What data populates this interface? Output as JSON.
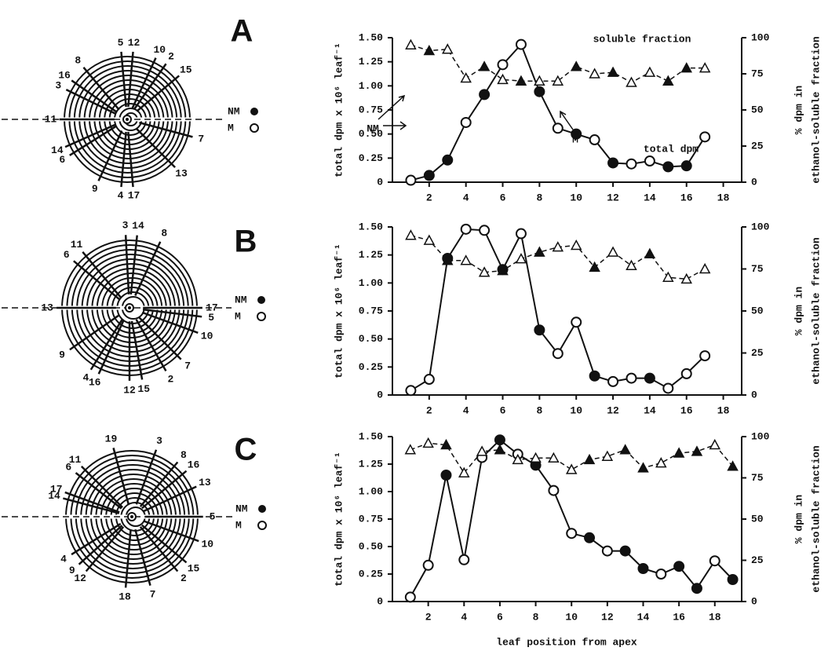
{
  "x_label": "leaf position from apex",
  "chart_data": [
    {
      "type": "line",
      "panel": "A",
      "y_label": "total dpm x 10⁶ leaf⁻¹",
      "y2_label": [
        "% dpm in",
        "ethanol-soluble fraction"
      ],
      "x": [
        1,
        2,
        3,
        4,
        5,
        6,
        7,
        8,
        9,
        10,
        11,
        12,
        13,
        14,
        15,
        16,
        17
      ],
      "xlim": [
        0,
        19
      ],
      "xticks": [
        2,
        4,
        6,
        8,
        10,
        12,
        14,
        16,
        18
      ],
      "ylim": [
        0,
        1.5
      ],
      "yticks": [
        0,
        0.25,
        {
          "value": 0.5,
          "label": "0.50"
        },
        0.75,
        {
          "value": 1,
          "label": "1.00"
        },
        1.25,
        {
          "value": 1.5,
          "label": "1.50"
        }
      ],
      "y2lim": [
        0,
        100
      ],
      "y2ticks": [
        0,
        25,
        50,
        75,
        100
      ],
      "series": [
        {
          "name": "total dpm",
          "color": "#111",
          "marker": "circle",
          "dash": false,
          "values": [
            0.02,
            0.07,
            0.23,
            0.62,
            0.91,
            1.22,
            1.43,
            0.94,
            0.56,
            0.5,
            0.44,
            0.2,
            0.19,
            0.22,
            0.16,
            0.17,
            0.47
          ],
          "filled": [
            false,
            true,
            true,
            false,
            true,
            false,
            false,
            true,
            false,
            true,
            false,
            true,
            false,
            false,
            true,
            true,
            false
          ]
        },
        {
          "name": "soluble fraction",
          "color": "#111",
          "marker": "triangle",
          "dash": true,
          "axis": "y2",
          "values": [
            95,
            91,
            92,
            72,
            80,
            71,
            70,
            70,
            70,
            80,
            75,
            76,
            69,
            76,
            70,
            79,
            79
          ],
          "filled": [
            false,
            true,
            false,
            false,
            true,
            false,
            true,
            false,
            false,
            true,
            false,
            true,
            false,
            false,
            true,
            true,
            false
          ]
        }
      ],
      "annotations": [
        "soluble fraction",
        "total dpm",
        "NM",
        "M"
      ]
    },
    {
      "type": "line",
      "panel": "B",
      "y_label": "total dpm x 10⁶ leaf⁻¹",
      "y2_label": [
        "% dpm in",
        "ethanol-soluble fraction"
      ],
      "x": [
        1,
        2,
        3,
        4,
        5,
        6,
        7,
        8,
        9,
        10,
        11,
        12,
        13,
        14,
        15,
        16,
        17
      ],
      "xlim": [
        0,
        19
      ],
      "xticks": [
        2,
        4,
        6,
        8,
        10,
        12,
        14,
        16,
        18
      ],
      "ylim": [
        0,
        1.5
      ],
      "yticks": [
        0,
        0.25,
        {
          "value": 0.5,
          "label": "0.50"
        },
        0.75,
        {
          "value": 1,
          "label": "1.00"
        },
        1.25,
        {
          "value": 1.5,
          "label": "1.50"
        }
      ],
      "y2lim": [
        0,
        100
      ],
      "y2ticks": [
        0,
        25,
        50,
        75,
        100
      ],
      "series": [
        {
          "name": "total dpm",
          "color": "#111",
          "marker": "circle",
          "dash": false,
          "values": [
            0.04,
            0.14,
            1.22,
            1.48,
            1.47,
            1.12,
            1.44,
            0.58,
            0.37,
            0.65,
            0.17,
            0.12,
            0.15,
            0.15,
            0.06,
            0.19,
            0.35
          ],
          "filled": [
            false,
            false,
            true,
            false,
            false,
            true,
            false,
            true,
            false,
            false,
            true,
            false,
            false,
            true,
            false,
            false,
            false
          ]
        },
        {
          "name": "soluble fraction",
          "color": "#111",
          "marker": "triangle",
          "dash": true,
          "axis": "y2",
          "values": [
            95,
            92,
            80,
            80,
            73,
            74,
            81,
            85,
            88,
            89,
            76,
            85,
            77,
            84,
            70,
            69,
            75
          ],
          "filled": [
            false,
            false,
            true,
            false,
            false,
            true,
            false,
            true,
            false,
            false,
            true,
            false,
            false,
            true,
            false,
            false,
            false
          ]
        }
      ],
      "annotations": []
    },
    {
      "type": "line",
      "panel": "C",
      "y_label": "total dpm x 10⁶ leaf⁻¹",
      "y2_label": [
        "% dpm in",
        "ethanol-soluble fraction"
      ],
      "x": [
        1,
        2,
        3,
        4,
        5,
        6,
        7,
        8,
        9,
        10,
        11,
        12,
        13,
        14,
        15,
        16,
        17,
        18,
        19
      ],
      "xlim": [
        0,
        19.5
      ],
      "xticks": [
        2,
        4,
        6,
        8,
        10,
        12,
        14,
        16,
        18
      ],
      "ylim": [
        0,
        1.5
      ],
      "yticks": [
        0,
        0.25,
        {
          "value": 0.5,
          "label": "0.50"
        },
        0.75,
        {
          "value": 1,
          "label": "1.00"
        },
        1.25,
        {
          "value": 1.5,
          "label": "1.50"
        }
      ],
      "y2lim": [
        0,
        100
      ],
      "y2ticks": [
        0,
        25,
        50,
        75,
        100
      ],
      "series": [
        {
          "name": "total dpm",
          "color": "#111",
          "marker": "circle",
          "dash": false,
          "values": [
            0.04,
            0.33,
            1.15,
            0.38,
            1.31,
            1.47,
            1.34,
            1.24,
            1.01,
            0.62,
            0.58,
            0.46,
            0.46,
            0.3,
            0.25,
            0.32,
            0.12,
            0.37,
            0.2
          ],
          "filled": [
            false,
            false,
            true,
            false,
            false,
            true,
            false,
            true,
            false,
            false,
            true,
            false,
            true,
            true,
            false,
            true,
            true,
            false,
            true
          ]
        },
        {
          "name": "soluble fraction",
          "color": "#111",
          "marker": "triangle",
          "dash": true,
          "axis": "y2",
          "values": [
            92,
            96,
            95,
            78,
            91,
            92,
            86,
            87,
            87,
            80,
            86,
            88,
            92,
            81,
            84,
            90,
            91,
            95,
            82
          ],
          "filled": [
            false,
            false,
            true,
            false,
            false,
            true,
            false,
            false,
            false,
            false,
            true,
            false,
            true,
            true,
            false,
            true,
            true,
            false,
            true
          ]
        }
      ],
      "annotations": []
    }
  ],
  "diagrams": [
    {
      "letter": "A",
      "legend": [
        "NM",
        "M"
      ],
      "leaves": [
        "5",
        "12",
        "10",
        "2",
        "15",
        "8",
        "16",
        "3",
        "11",
        "7",
        "13",
        "17",
        "4",
        "9",
        "6",
        "14"
      ]
    },
    {
      "letter": "B",
      "legend": [
        "NM",
        "M"
      ],
      "leaves": [
        "3",
        "14",
        "8",
        "11",
        "6",
        "13",
        "17",
        "5",
        "10",
        "7",
        "2",
        "15",
        "12",
        "16",
        "4",
        "9"
      ]
    },
    {
      "letter": "C",
      "legend": [
        "NM",
        "M"
      ],
      "leaves": [
        "19",
        "3",
        "8",
        "16",
        "13",
        "11",
        "6",
        "17",
        "14",
        "5",
        "10",
        "15",
        "2",
        "7",
        "18",
        "12",
        "9",
        "4"
      ]
    }
  ]
}
